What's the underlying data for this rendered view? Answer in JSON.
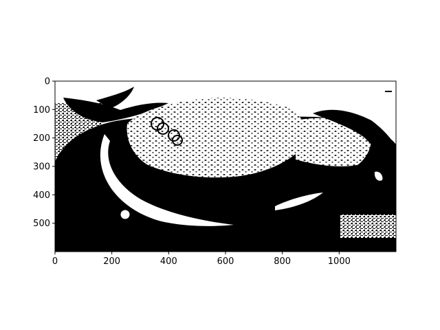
{
  "colors": {
    "foreground": "#000000",
    "background": "#ffffff"
  },
  "chart_data": {
    "type": "heatmap",
    "description_of_content": "",
    "colormap": "binary",
    "xlim": [
      0,
      1200
    ],
    "ylim": [
      600,
      0
    ],
    "y_inverted": true,
    "x_ticks": [
      0,
      200,
      400,
      600,
      800,
      1000
    ],
    "x_tick_labels": [
      "0",
      "200",
      "400",
      "600",
      "800",
      "1000"
    ],
    "y_ticks": [
      0,
      100,
      200,
      300,
      400,
      500
    ],
    "y_tick_labels": [
      "0",
      "100",
      "200",
      "300",
      "400",
      "500"
    ],
    "title": "",
    "xlabel": "",
    "ylabel": "",
    "grid": false,
    "legend": "none"
  }
}
